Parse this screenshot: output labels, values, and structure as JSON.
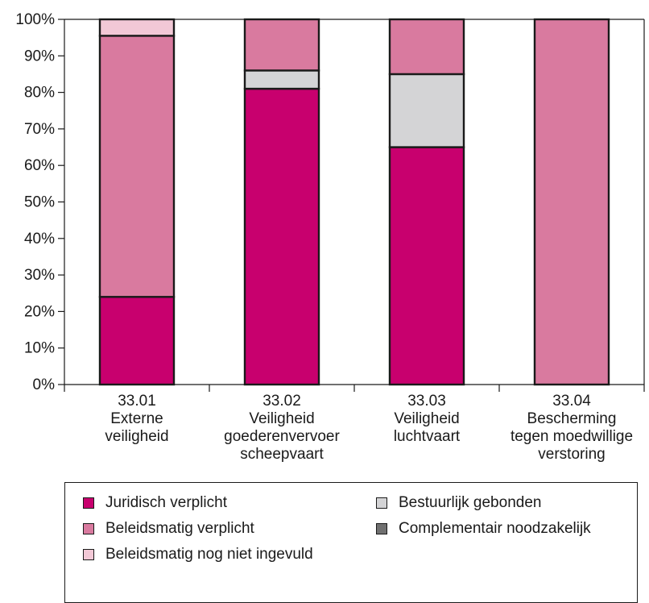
{
  "chart_data": {
    "type": "bar",
    "stacked": true,
    "categories": [
      [
        "33.01",
        "Externe",
        "veiligheid"
      ],
      [
        "33.02",
        "Veiligheid",
        "goederenvervoer",
        "scheepvaart"
      ],
      [
        "33.03",
        "Veiligheid",
        "luchtvaart"
      ],
      [
        "33.04",
        "Bescherming",
        "tegen moedwillige",
        "verstoring"
      ]
    ],
    "series": [
      {
        "name": "Juridisch verplicht",
        "color": "#c8006e",
        "values": [
          24,
          81,
          65,
          0
        ]
      },
      {
        "name": "Bestuurlijk gebonden",
        "color": "#d4d4d6",
        "values": [
          0,
          5,
          20,
          0
        ]
      },
      {
        "name": "Complementair noodzakelijk",
        "color": "#707070",
        "values": [
          0,
          0,
          0,
          0
        ]
      },
      {
        "name": "Beleidsmatig verplicht",
        "color": "#d97a9f",
        "values": [
          71.5,
          14,
          15,
          100
        ]
      },
      {
        "name": "Beleidsmatig nog niet ingevuld",
        "color": "#f2c8d6",
        "values": [
          4.5,
          0,
          0,
          0
        ]
      }
    ],
    "yticks": [
      "0%",
      "10%",
      "20%",
      "30%",
      "40%",
      "50%",
      "60%",
      "70%",
      "80%",
      "90%",
      "100%"
    ],
    "ylim": [
      0,
      100
    ],
    "title": "",
    "xlabel": "",
    "ylabel": "",
    "grid": false,
    "legend_position": "bottom"
  },
  "legend": [
    {
      "label": "Juridisch verplicht",
      "color": "#c8006e"
    },
    {
      "label": "Beleidsmatig verplicht",
      "color": "#d97a9f"
    },
    {
      "label": "Beleidsmatig nog niet ingevuld",
      "color": "#f2c8d6"
    },
    {
      "label": "Bestuurlijk gebonden",
      "color": "#d4d4d6"
    },
    {
      "label": "Complementair noodzakelijk",
      "color": "#707070"
    }
  ]
}
